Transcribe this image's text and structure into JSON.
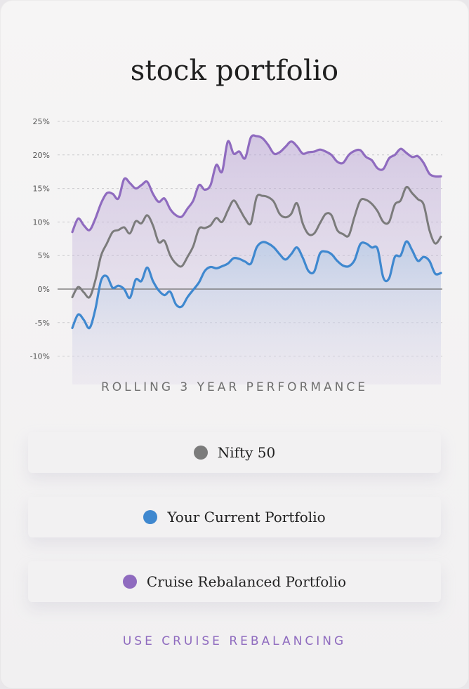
{
  "title": "stock portfolio",
  "subtitle": "ROLLING 3 YEAR PERFORMANCE",
  "legend": [
    {
      "label": "Nifty 50",
      "color": "#7b7b7b"
    },
    {
      "label": "Your Current Portfolio",
      "color": "#3f88cf"
    },
    {
      "label": "Cruise Rebalanced Portfolio",
      "color": "#8f6bbf"
    }
  ],
  "cta": "USE CRUISE REBALANCING",
  "chart_data": {
    "type": "area",
    "title": "stock portfolio",
    "xlabel": "ROLLING 3 YEAR PERFORMANCE",
    "ylabel": "",
    "ylim": [
      -10,
      25
    ],
    "yticks": [
      25,
      20,
      15,
      10,
      5,
      0,
      -5,
      -10
    ],
    "ytick_labels": [
      "25%",
      "20%",
      "15%",
      "10%",
      "5%",
      "0%",
      "-5%",
      "-10%"
    ],
    "grid": true,
    "legend_position": "bottom",
    "series": [
      {
        "name": "Nifty 50",
        "color": "#7b7b7b",
        "values": [
          -1.2,
          0.3,
          -0.5,
          -1.2,
          1.3,
          5.0,
          6.8,
          8.5,
          8.8,
          9.2,
          8.3,
          10.1,
          9.8,
          11.0,
          9.5,
          7.0,
          7.2,
          5.0,
          3.8,
          3.4,
          4.8,
          6.4,
          9.0,
          9.1,
          9.5,
          10.6,
          10.0,
          11.7,
          13.2,
          12.0,
          10.5,
          9.8,
          13.7,
          13.9,
          13.7,
          13.0,
          11.2,
          10.7,
          11.2,
          12.8,
          9.8,
          8.2,
          8.3,
          9.8,
          11.2,
          11.0,
          8.8,
          8.2,
          8.0,
          10.8,
          13.2,
          13.3,
          12.7,
          11.6,
          10.0,
          10.0,
          12.6,
          13.2,
          15.2,
          14.3,
          13.4,
          12.6,
          8.8,
          6.8,
          7.8
        ]
      },
      {
        "name": "Your Current Portfolio",
        "color": "#3f88cf",
        "values": [
          -5.8,
          -3.8,
          -4.6,
          -5.8,
          -3.0,
          1.3,
          1.9,
          0.2,
          0.5,
          0.0,
          -1.3,
          1.4,
          1.2,
          3.2,
          1.2,
          -0.2,
          -0.9,
          -0.4,
          -2.3,
          -2.6,
          -1.2,
          -0.1,
          1.0,
          2.7,
          3.3,
          3.1,
          3.4,
          3.8,
          4.6,
          4.5,
          4.1,
          3.8,
          6.2,
          7.0,
          6.8,
          6.2,
          5.2,
          4.4,
          5.2,
          6.2,
          4.7,
          2.7,
          2.6,
          5.3,
          5.6,
          5.2,
          4.2,
          3.5,
          3.4,
          4.3,
          6.7,
          6.8,
          6.2,
          6.0,
          1.7,
          1.6,
          4.8,
          5.0,
          7.1,
          5.8,
          4.2,
          4.8,
          4.2,
          2.3,
          2.4
        ]
      },
      {
        "name": "Cruise Rebalanced Portfolio",
        "color": "#8f6bbf",
        "values": [
          8.5,
          10.5,
          9.5,
          8.8,
          10.5,
          12.8,
          14.3,
          14.2,
          13.5,
          16.4,
          15.8,
          15.0,
          15.5,
          16.0,
          14.2,
          13.0,
          13.5,
          11.9,
          11.0,
          10.8,
          12.0,
          13.2,
          15.5,
          14.8,
          15.5,
          18.5,
          17.5,
          22.0,
          20.2,
          20.5,
          19.5,
          22.6,
          22.8,
          22.5,
          21.5,
          20.2,
          20.4,
          21.2,
          22.0,
          21.3,
          20.2,
          20.4,
          20.5,
          20.8,
          20.5,
          20.0,
          19.0,
          18.8,
          20.0,
          20.6,
          20.7,
          19.7,
          19.2,
          18.0,
          17.9,
          19.5,
          20.0,
          20.9,
          20.3,
          19.7,
          19.8,
          18.8,
          17.2,
          16.8,
          16.8
        ]
      }
    ]
  }
}
